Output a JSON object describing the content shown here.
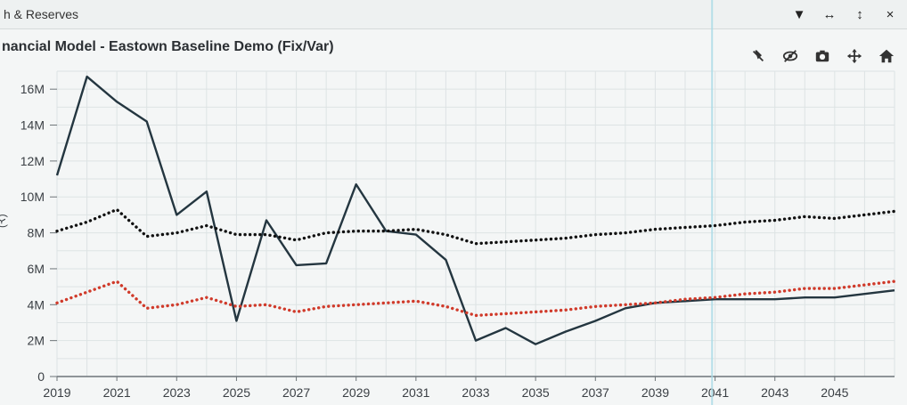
{
  "window": {
    "title": "h & Reserves",
    "controls": [
      {
        "name": "dropdown-icon",
        "glyph": "▼"
      },
      {
        "name": "resize-horizontal-icon",
        "glyph": "↔"
      },
      {
        "name": "resize-vertical-icon",
        "glyph": "↕"
      },
      {
        "name": "close-icon",
        "glyph": "×"
      }
    ]
  },
  "modebar": [
    {
      "name": "autoscale-off-icon"
    },
    {
      "name": "hide-icon"
    },
    {
      "name": "camera-icon"
    },
    {
      "name": "pan-icon"
    },
    {
      "name": "home-icon"
    }
  ],
  "colors": {
    "solid_line": "#243640",
    "black_dotted": "#111111",
    "red_dotted": "#d03a2a",
    "grid": "#dde3e4",
    "axis": "#6d7478",
    "cursor_line": "#a9dbe6"
  },
  "chart_data": {
    "type": "line",
    "title": "nancial Model - Eastown Baseline Demo (Fix/Var)",
    "ylabel": "(₹)",
    "xlim": [
      2019,
      2047
    ],
    "ylim": [
      0,
      17000000
    ],
    "x_ticks": [
      2019,
      2021,
      2023,
      2025,
      2027,
      2029,
      2031,
      2033,
      2035,
      2037,
      2039,
      2041,
      2043,
      2045
    ],
    "y_ticks": [
      {
        "v": 0,
        "label": "0"
      },
      {
        "v": 2000000,
        "label": "2M"
      },
      {
        "v": 4000000,
        "label": "4M"
      },
      {
        "v": 6000000,
        "label": "6M"
      },
      {
        "v": 8000000,
        "label": "8M"
      },
      {
        "v": 10000000,
        "label": "10M"
      },
      {
        "v": 12000000,
        "label": "12M"
      },
      {
        "v": 14000000,
        "label": "14M"
      },
      {
        "v": 16000000,
        "label": "16M"
      }
    ],
    "grid": true,
    "cursor_x": 2040.9,
    "series": [
      {
        "style": "solid",
        "x": [
          2019,
          2020,
          2021,
          2022,
          2023,
          2024,
          2025,
          2026,
          2027,
          2028,
          2029,
          2030,
          2031,
          2032,
          2033,
          2034,
          2035,
          2036,
          2037,
          2038,
          2039,
          2040,
          2041,
          2042,
          2043,
          2044,
          2045,
          2046,
          2047
        ],
        "values": [
          11200000,
          16700000,
          15300000,
          14200000,
          9000000,
          10300000,
          3100000,
          8700000,
          6200000,
          6300000,
          10700000,
          8100000,
          7900000,
          6500000,
          2000000,
          2700000,
          1800000,
          2500000,
          3100000,
          3800000,
          4100000,
          4200000,
          4300000,
          4300000,
          4300000,
          4400000,
          4400000,
          4600000,
          4800000
        ]
      },
      {
        "style": "dotted-black",
        "x": [
          2019,
          2020,
          2021,
          2022,
          2023,
          2024,
          2025,
          2026,
          2027,
          2028,
          2029,
          2030,
          2031,
          2032,
          2033,
          2034,
          2035,
          2036,
          2037,
          2038,
          2039,
          2040,
          2041,
          2042,
          2043,
          2044,
          2045,
          2046,
          2047
        ],
        "values": [
          8100000,
          8600000,
          9300000,
          7800000,
          8000000,
          8400000,
          7900000,
          7900000,
          7600000,
          8000000,
          8100000,
          8100000,
          8200000,
          7900000,
          7400000,
          7500000,
          7600000,
          7700000,
          7900000,
          8000000,
          8200000,
          8300000,
          8400000,
          8600000,
          8700000,
          8900000,
          8800000,
          9000000,
          9200000
        ]
      },
      {
        "style": "dotted-red",
        "x": [
          2019,
          2020,
          2021,
          2022,
          2023,
          2024,
          2025,
          2026,
          2027,
          2028,
          2029,
          2030,
          2031,
          2032,
          2033,
          2034,
          2035,
          2036,
          2037,
          2038,
          2039,
          2040,
          2041,
          2042,
          2043,
          2044,
          2045,
          2046,
          2047
        ],
        "values": [
          4100000,
          4700000,
          5300000,
          3800000,
          4000000,
          4400000,
          3900000,
          4000000,
          3600000,
          3900000,
          4000000,
          4100000,
          4200000,
          3900000,
          3400000,
          3500000,
          3600000,
          3700000,
          3900000,
          4000000,
          4100000,
          4300000,
          4400000,
          4600000,
          4700000,
          4900000,
          4900000,
          5100000,
          5300000
        ]
      }
    ]
  }
}
